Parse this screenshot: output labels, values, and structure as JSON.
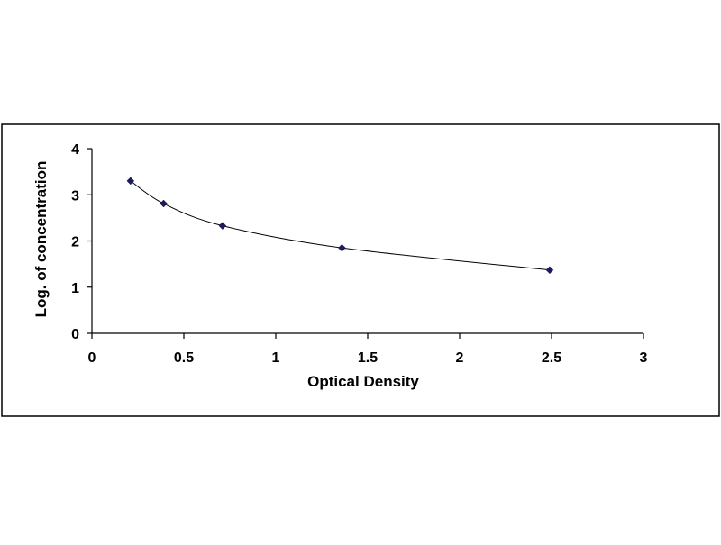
{
  "colors": {
    "background": "#ffffff",
    "frame": "#000000",
    "axis": "#000000",
    "curve": "#000000",
    "marker": "#1b1b5e"
  },
  "chart_data": {
    "type": "scatter",
    "title": "",
    "xlabel": "Optical Density",
    "ylabel": "Log. of concentration",
    "xlim": [
      0,
      3
    ],
    "ylim": [
      0,
      4
    ],
    "x_ticks": [
      "0",
      "0.5",
      "1",
      "1.5",
      "2",
      "2.5",
      "3"
    ],
    "y_ticks": [
      "0",
      "1",
      "2",
      "3",
      "4"
    ],
    "grid": false,
    "legend": "none",
    "series": [
      {
        "marker": "diamond",
        "trendline": "smooth fitted curve",
        "points": [
          {
            "x": 0.21,
            "y": 3.3
          },
          {
            "x": 0.39,
            "y": 2.81
          },
          {
            "x": 0.71,
            "y": 2.33
          },
          {
            "x": 1.36,
            "y": 1.85
          },
          {
            "x": 2.49,
            "y": 1.37
          }
        ]
      }
    ]
  }
}
